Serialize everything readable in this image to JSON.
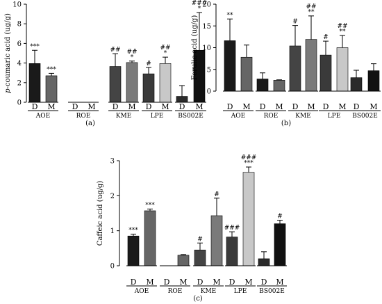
{
  "chart_data": [
    {
      "type": "bar",
      "panel_label": "(a)",
      "ylabel": "p-coumaric acid (ug/g)",
      "ylim": [
        0,
        10
      ],
      "yticks": [
        0,
        2,
        4,
        6,
        8,
        10
      ],
      "groups": [
        "AOE",
        "ROE",
        "KME",
        "LPE",
        "BS002E"
      ],
      "categories": [
        "D",
        "M",
        "D",
        "M",
        "D",
        "M",
        "D",
        "M",
        "D",
        "M"
      ],
      "values": [
        3.95,
        2.7,
        0,
        0,
        3.65,
        4.05,
        2.9,
        3.95,
        0.6,
        5.3
      ],
      "errors": [
        1.35,
        0.25,
        0,
        0,
        1.3,
        0.15,
        0.65,
        0.65,
        1.1,
        3.85
      ],
      "annotations": [
        "***",
        "***",
        "",
        "",
        "##",
        "##\n*",
        "#",
        "##\n*",
        "",
        "###\n*"
      ],
      "colors": [
        "#1a1a1a",
        "#666666",
        "#1a1a1a",
        "#666666",
        "#444444",
        "#7a7a7a",
        "#3a3a3a",
        "#c8c8c8",
        "#2a2a2a",
        "#111111"
      ]
    },
    {
      "type": "bar",
      "panel_label": "(b)",
      "ylabel": "Ferulic acid (ug/g)",
      "ylim": [
        0,
        20
      ],
      "yticks": [
        0,
        5,
        10,
        15,
        20
      ],
      "groups": [
        "AOE",
        "ROE",
        "KME",
        "LPE",
        "BS002E"
      ],
      "categories": [
        "D",
        "M",
        "D",
        "M",
        "D",
        "M",
        "D",
        "M",
        "D",
        "M"
      ],
      "values": [
        11.6,
        7.8,
        2.8,
        2.5,
        10.4,
        11.9,
        8.3,
        10.0,
        3.1,
        4.7
      ],
      "errors": [
        5.0,
        2.8,
        1.4,
        0.1,
        4.7,
        5.4,
        3.2,
        2.8,
        1.7,
        1.6
      ],
      "annotations": [
        "**",
        "",
        "",
        "",
        "#",
        "##\n**",
        "#",
        "##\n**",
        "",
        ""
      ],
      "colors": [
        "#1a1a1a",
        "#666666",
        "#1a1a1a",
        "#666666",
        "#444444",
        "#7a7a7a",
        "#3a3a3a",
        "#c8c8c8",
        "#2a2a2a",
        "#111111"
      ]
    },
    {
      "type": "bar",
      "panel_label": "(c)",
      "ylabel": "Caffeic acid (ug/g)",
      "ylim": [
        0,
        3
      ],
      "yticks": [
        0,
        1,
        2,
        3
      ],
      "groups": [
        "AOE",
        "ROE",
        "KME",
        "LPE",
        "BS002E"
      ],
      "categories": [
        "D",
        "M",
        "D",
        "M",
        "D",
        "M",
        "D",
        "M",
        "D",
        "M"
      ],
      "values": [
        0.85,
        1.57,
        0,
        0.3,
        0.45,
        1.43,
        0.82,
        2.67,
        0.2,
        1.2
      ],
      "errors": [
        0.05,
        0.05,
        0,
        0.02,
        0.2,
        0.5,
        0.15,
        0.15,
        0.2,
        0.1
      ],
      "annotations": [
        "***",
        "***",
        "",
        "",
        "#",
        "#",
        "###",
        "###\n***",
        "",
        "#"
      ],
      "colors": [
        "#1a1a1a",
        "#666666",
        "#1a1a1a",
        "#666666",
        "#444444",
        "#7a7a7a",
        "#3a3a3a",
        "#c8c8c8",
        "#2a2a2a",
        "#111111"
      ]
    }
  ]
}
